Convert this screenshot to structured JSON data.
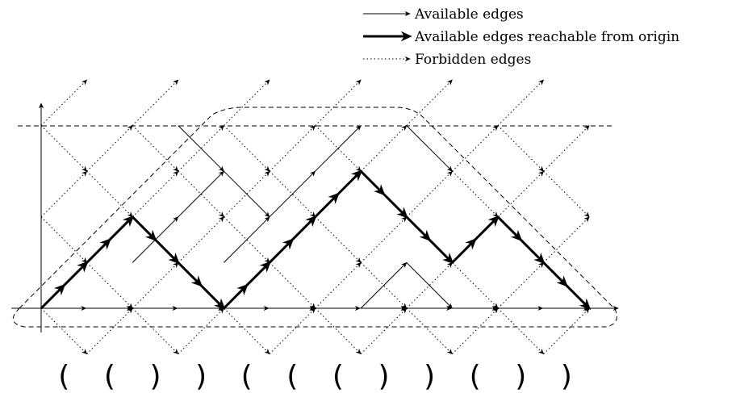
{
  "legend": {
    "available": "Available edges",
    "reachable": "Available edges reachable from origin",
    "forbidden": "Forbidden edges"
  },
  "word": [
    "(",
    "(",
    ")",
    ")",
    "(",
    "(",
    "(",
    ")",
    ")",
    "(",
    ")",
    ")"
  ],
  "path_heights": [
    0,
    1,
    2,
    1,
    0,
    1,
    2,
    3,
    2,
    1,
    2,
    1,
    0
  ],
  "available_edges": [
    [
      2,
      1,
      3,
      2
    ],
    [
      3,
      2,
      4,
      3
    ],
    [
      4,
      1,
      5,
      2
    ],
    [
      5,
      2,
      6,
      3
    ],
    [
      6,
      3,
      7,
      4
    ],
    [
      7,
      0,
      8,
      1
    ],
    [
      3,
      4,
      4,
      3
    ],
    [
      4,
      3,
      5,
      2
    ],
    [
      8,
      4,
      9,
      3
    ],
    [
      8,
      1,
      9,
      0
    ]
  ],
  "forbidden_region": {
    "heights": [
      -1,
      0,
      1,
      2,
      3,
      4
    ],
    "columns": [
      -1,
      0,
      1,
      2,
      3,
      4,
      5,
      6,
      7,
      8,
      9,
      10,
      11,
      12,
      13,
      14
    ]
  },
  "colors": {
    "ink": "#000000"
  }
}
